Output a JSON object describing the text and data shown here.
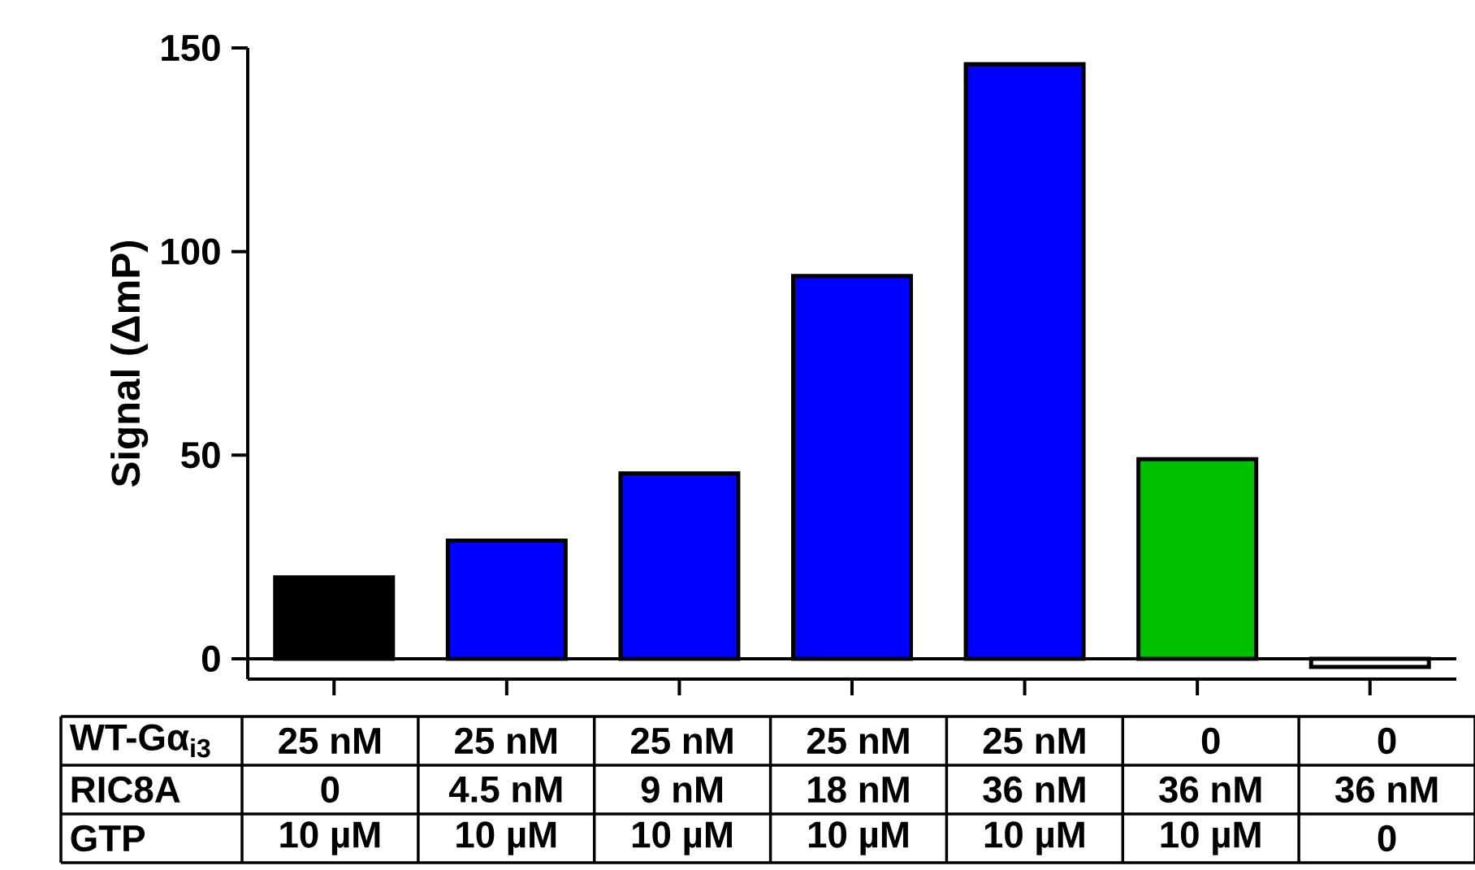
{
  "chart_data": {
    "type": "bar",
    "ylabel": "Signal (ΔmP)",
    "categories": [
      null,
      null,
      null,
      null,
      null,
      null,
      null
    ],
    "values": [
      20,
      29,
      45.5,
      94,
      146,
      49,
      -2
    ],
    "colors": [
      "#000000",
      "#0000ff",
      "#0000ff",
      "#0000ff",
      "#0000ff",
      "#00c000",
      "#ffffff"
    ],
    "ylim": [
      -5,
      150
    ],
    "yticks": [
      0,
      50,
      100,
      150
    ],
    "ref_lines": [
      {
        "axis": "y",
        "value": 0
      }
    ],
    "annotations": [
      "WT-Gα$_{i3}$",
      "25 nM",
      "25 nM",
      "25 nM",
      "25 nM",
      "25 nM",
      "0",
      "0",
      "RIC8A",
      "0",
      "4.5 nM",
      "9 nM",
      "18 nM",
      "36 nM",
      "36 nM",
      "36 nM",
      "GTP",
      "10 µM",
      "10 µM",
      "10 µM",
      "10 µM",
      "10 µM",
      "10 µM",
      "0"
    ]
  }
}
